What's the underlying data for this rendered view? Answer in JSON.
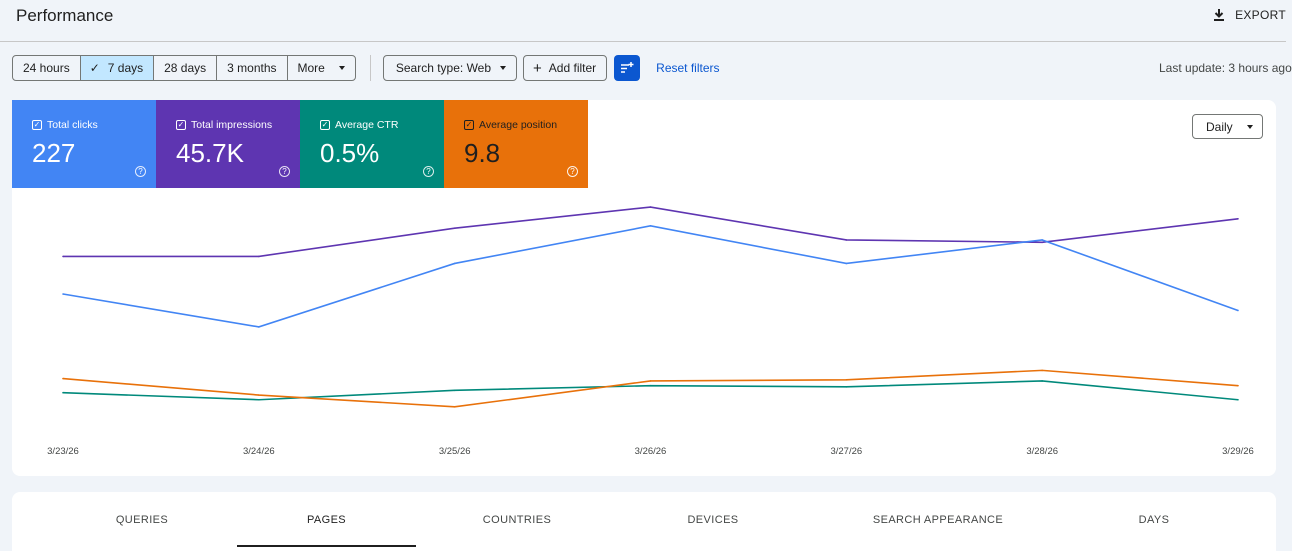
{
  "header": {
    "title": "Performance",
    "export_label": "EXPORT"
  },
  "filters": {
    "date_ranges": [
      {
        "label": "24 hours",
        "active": false
      },
      {
        "label": "7 days",
        "active": true
      },
      {
        "label": "28 days",
        "active": false
      },
      {
        "label": "3 months",
        "active": false
      },
      {
        "label": "More",
        "active": false
      }
    ],
    "search_type": "Search type: Web",
    "add_filter": "Add filter",
    "reset": "Reset filters",
    "last_update": "Last update: 3 hours ago"
  },
  "metrics": [
    {
      "label": "Total clicks",
      "value": "227",
      "color": "#4285f4"
    },
    {
      "label": "Total impressions",
      "value": "45.7K",
      "color": "#5e35b1"
    },
    {
      "label": "Average CTR",
      "value": "0.5%",
      "color": "#00897b"
    },
    {
      "label": "Average position",
      "value": "9.8",
      "color": "#e8710a"
    }
  ],
  "granularity": "Daily",
  "chart_data": {
    "type": "line",
    "x": [
      "3/23/26",
      "3/24/26",
      "3/25/26",
      "3/26/26",
      "3/27/26",
      "3/28/26",
      "3/29/26"
    ],
    "series": [
      {
        "name": "Total impressions",
        "color": "#5e35b1",
        "values": [
          76,
          76,
          88,
          97,
          83,
          82,
          92
        ]
      },
      {
        "name": "Total clicks",
        "color": "#4285f4",
        "values": [
          60,
          46,
          73,
          89,
          73,
          83,
          53
        ]
      },
      {
        "name": "Average CTR",
        "color": "#00897b",
        "values": [
          18,
          15,
          19,
          21,
          20.5,
          23,
          15
        ]
      },
      {
        "name": "Average position",
        "color": "#e8710a",
        "values": [
          24,
          17,
          12,
          23,
          23.5,
          27.5,
          21
        ]
      }
    ],
    "ylim": [
      0,
      100
    ],
    "grid": false,
    "legend": "top-left"
  },
  "tabs": [
    {
      "label": "QUERIES",
      "active": false
    },
    {
      "label": "PAGES",
      "active": true
    },
    {
      "label": "COUNTRIES",
      "active": false
    },
    {
      "label": "DEVICES",
      "active": false
    },
    {
      "label": "SEARCH APPEARANCE",
      "active": false
    },
    {
      "label": "DAYS",
      "active": false
    }
  ]
}
